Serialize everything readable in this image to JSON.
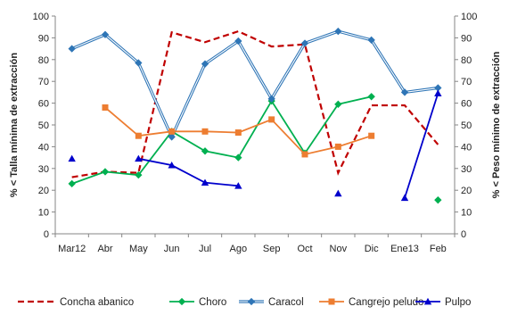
{
  "chart_data": {
    "type": "line",
    "title": "",
    "xlabel": "",
    "ylabel": "% < Talla mínima de extracción",
    "ylabel_right": "% < Peso mínimo de extracción",
    "ylim": [
      0,
      100
    ],
    "y_ticks": [
      0,
      10,
      20,
      30,
      40,
      50,
      60,
      70,
      80,
      90,
      100
    ],
    "categories": [
      "Mar12",
      "Abr",
      "May",
      "Jun",
      "Jul",
      "Ago",
      "Sep",
      "Oct",
      "Nov",
      "Dic",
      "Ene13",
      "Feb"
    ],
    "grid": false,
    "legend_position": "bottom",
    "series": [
      {
        "name": "Concha abanico",
        "style": "dashed",
        "marker": "none",
        "color": "#C00000",
        "values": [
          26,
          28.5,
          28,
          92.5,
          88,
          93,
          86,
          87,
          28,
          59,
          59,
          41
        ]
      },
      {
        "name": "Choro",
        "style": "solid",
        "marker": "diamond",
        "color": "#00B050",
        "values": [
          23,
          28.5,
          27,
          47,
          38,
          35,
          61,
          37,
          59.5,
          63,
          null,
          15.5
        ]
      },
      {
        "name": "Caracol",
        "style": "double",
        "marker": "diamond",
        "color": "#2E75B6",
        "values": [
          85,
          91.5,
          78.5,
          44.5,
          78,
          88.5,
          62,
          87.5,
          93,
          89,
          65,
          67
        ]
      },
      {
        "name": "Cangrejo peludo",
        "style": "solid",
        "marker": "square",
        "color": "#ED7D31",
        "values": [
          null,
          58,
          45,
          47,
          47,
          46.5,
          52.5,
          36.5,
          40,
          45,
          null,
          null
        ]
      },
      {
        "name": "Pulpo",
        "style": "solid",
        "marker": "triangle",
        "color": "#0000CC",
        "values": [
          34.5,
          null,
          34.5,
          31.5,
          23.5,
          22,
          null,
          null,
          18.5,
          null,
          16.5,
          64.5
        ]
      }
    ]
  }
}
